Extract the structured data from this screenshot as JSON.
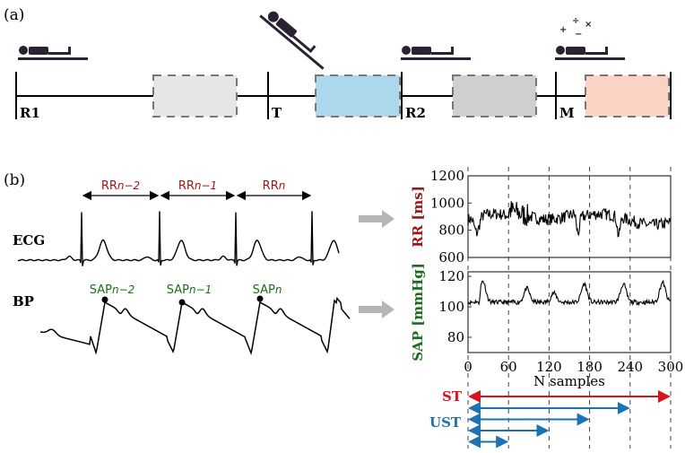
{
  "panel_a": {
    "label": "(a)",
    "phases": [
      {
        "label": "R1",
        "posture": "supine",
        "window_color": "#e6e6e6"
      },
      {
        "label": "T",
        "posture": "tilt",
        "window_color": "#acd8ec"
      },
      {
        "label": "R2",
        "posture": "supine",
        "window_color": "#cfcfcf"
      },
      {
        "label": "M",
        "posture": "supine-math",
        "window_color": "#fbd3c4"
      }
    ],
    "math_symbols": [
      "+",
      "÷",
      "−",
      "×"
    ]
  },
  "panel_b": {
    "label": "(b)",
    "ecg_label": "ECG",
    "bp_label": "BP",
    "rr_intervals": [
      {
        "base": "RR",
        "sub": "n−2"
      },
      {
        "base": "RR",
        "sub": "n−1"
      },
      {
        "base": "RR",
        "sub": "n"
      }
    ],
    "sap_peaks": [
      {
        "base": "SAP",
        "sub": "n−2"
      },
      {
        "base": "SAP",
        "sub": "n−1"
      },
      {
        "base": "SAP",
        "sub": "n"
      }
    ],
    "colors": {
      "rr": "#a31515",
      "sap": "#1b6e1b",
      "st": "#d9141e",
      "ust": "#1a73b5"
    }
  },
  "chart_data": [
    {
      "type": "line",
      "ylabel": "RR [ms]",
      "ylim": [
        600,
        1200
      ],
      "yticks": [
        "1200",
        "1000",
        "800",
        "600"
      ],
      "xlim": [
        0,
        300
      ],
      "grid": "vertical dashed at 60,120,180,240,300"
    },
    {
      "type": "line",
      "ylabel": "SAP [mmHg]",
      "ylim": [
        70,
        123
      ],
      "yticks": [
        "120",
        "100",
        "80"
      ],
      "xlim": [
        0,
        300
      ],
      "xticks": [
        "0",
        "60",
        "120",
        "180",
        "240",
        "300"
      ],
      "xlabel": "N samples"
    }
  ],
  "windows": {
    "st_label": "ST",
    "ust_label": "UST",
    "st_range": [
      0,
      300
    ],
    "ust_ranges": [
      [
        0,
        240
      ],
      [
        0,
        180
      ],
      [
        0,
        120
      ],
      [
        0,
        60
      ]
    ]
  }
}
